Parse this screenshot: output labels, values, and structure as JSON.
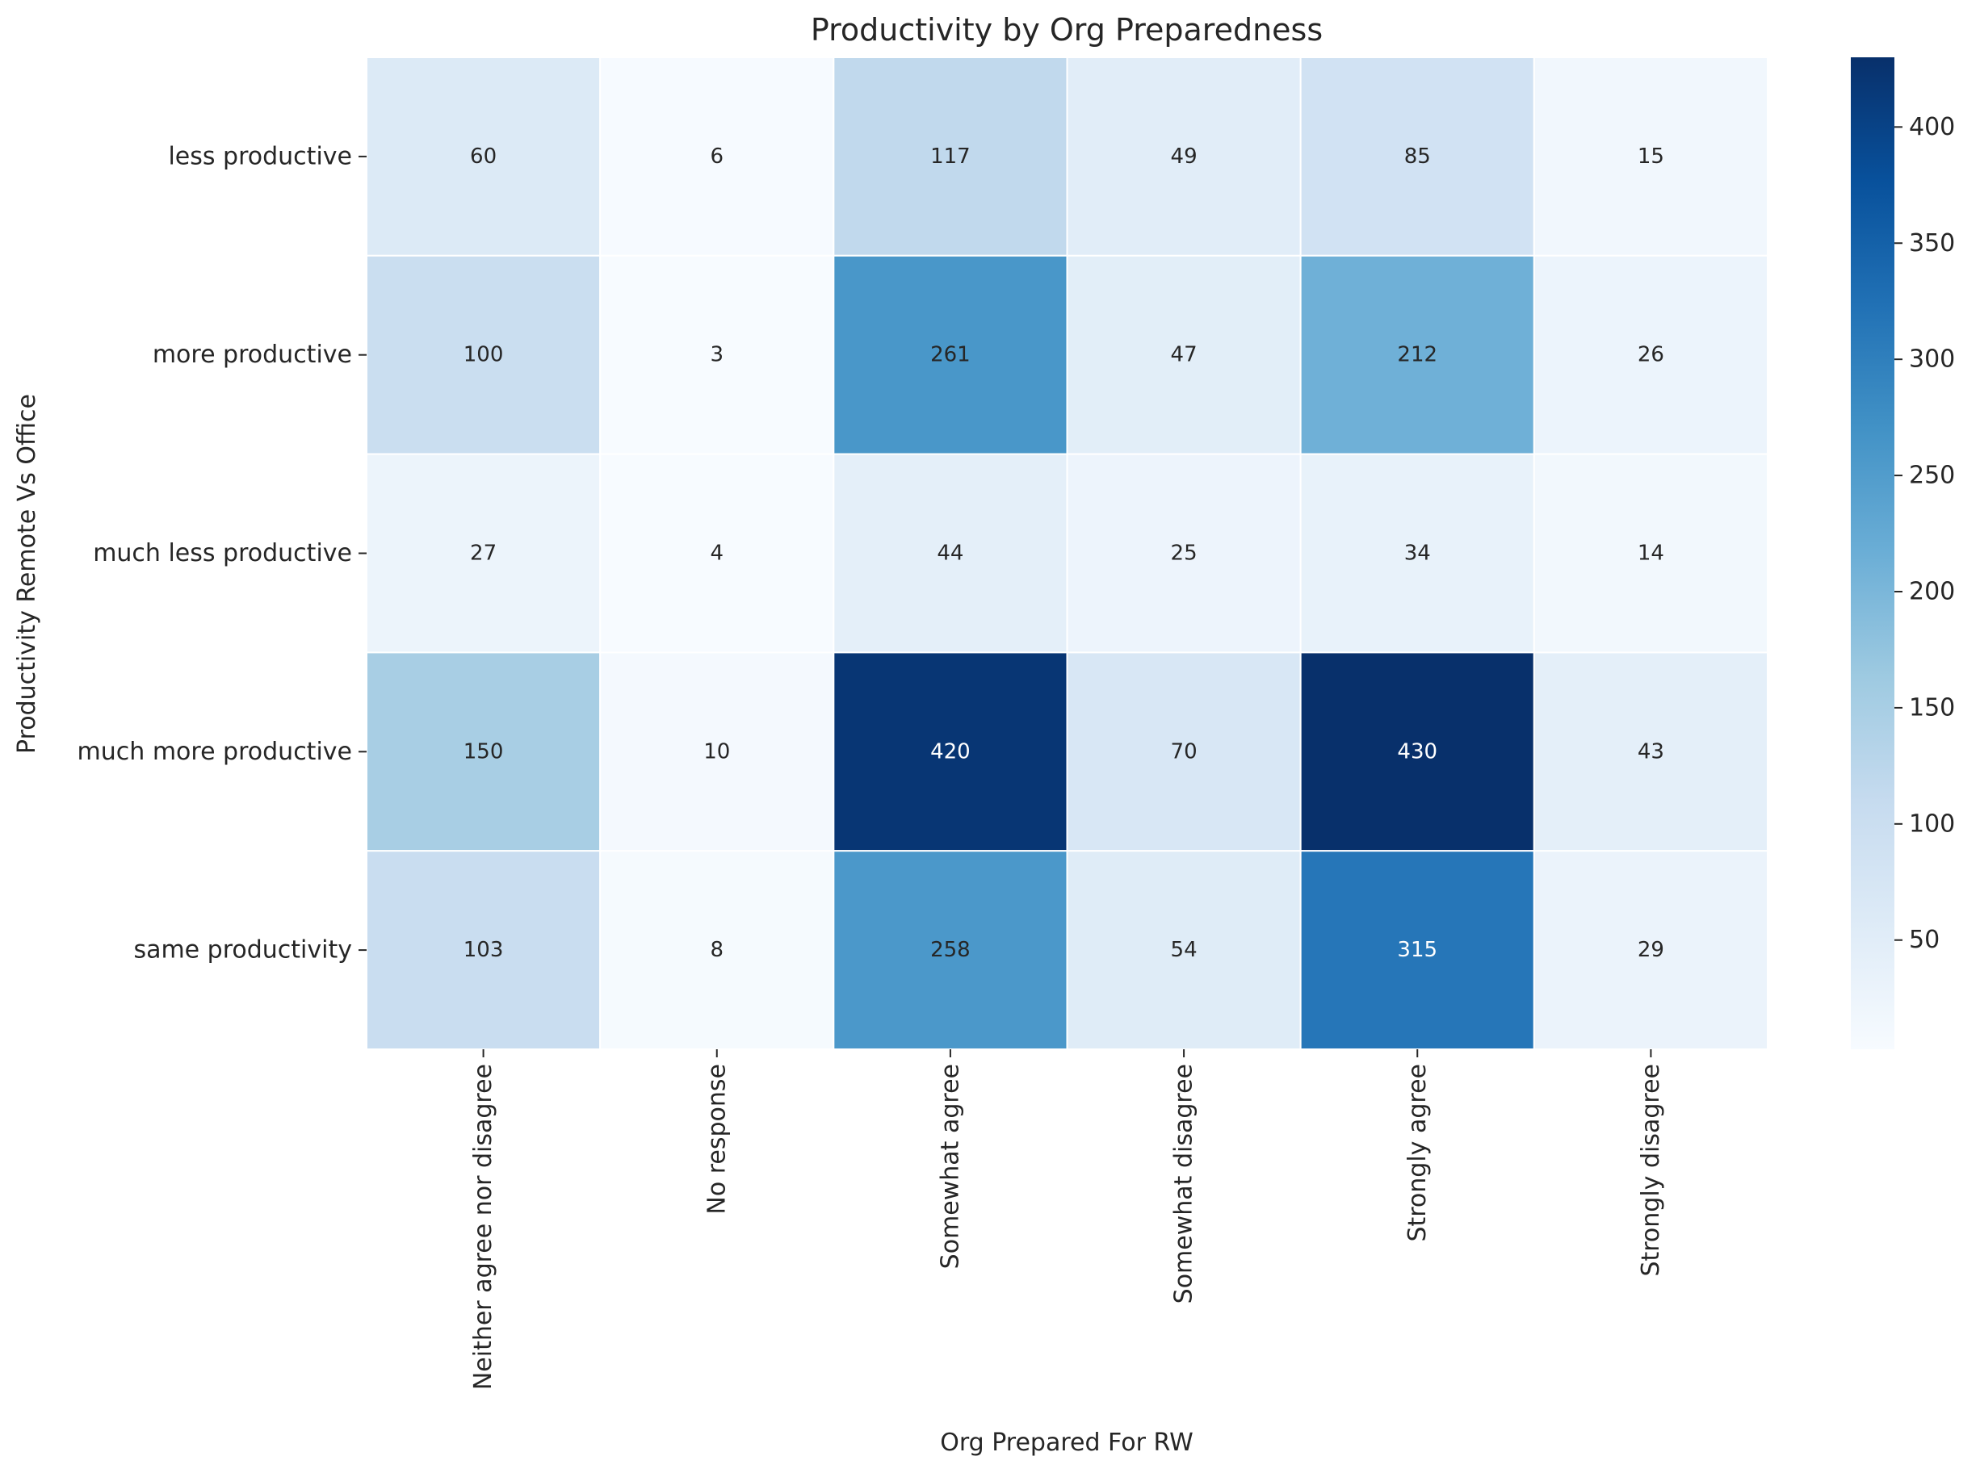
{
  "chart_data": {
    "type": "heatmap",
    "title": "Productivity by Org Preparedness",
    "xlabel": "Org Prepared For RW",
    "ylabel": "Productivity Remote Vs Office",
    "x_categories": [
      "Neither agree nor disagree",
      "No response",
      "Somewhat agree",
      "Somewhat disagree",
      "Strongly agree",
      "Strongly disagree"
    ],
    "y_categories": [
      "less productive",
      "more productive",
      "much less productive",
      "much more productive",
      "same productivity"
    ],
    "values": [
      [
        60,
        6,
        117,
        49,
        85,
        15
      ],
      [
        100,
        3,
        261,
        47,
        212,
        26
      ],
      [
        27,
        4,
        44,
        25,
        34,
        14
      ],
      [
        150,
        10,
        420,
        70,
        430,
        43
      ],
      [
        103,
        8,
        258,
        54,
        315,
        29
      ]
    ],
    "colormap": "Blues",
    "colorbar": {
      "range": [
        3,
        430
      ],
      "ticks": [
        50,
        100,
        150,
        200,
        250,
        300,
        350,
        400
      ]
    },
    "annotations": true
  }
}
